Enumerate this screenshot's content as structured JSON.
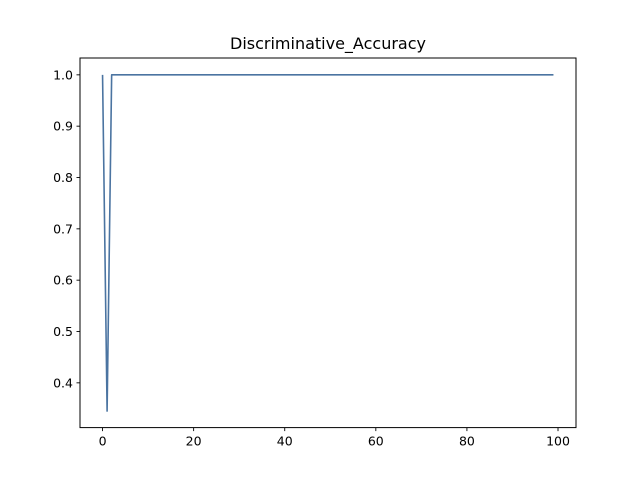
{
  "chart_data": {
    "type": "line",
    "title": "Discriminative_Accuracy",
    "xlabel": "",
    "ylabel": "",
    "xlim": [
      -4.95,
      103.95
    ],
    "ylim": [
      0.3128,
      1.0328
    ],
    "grid": false,
    "legend": "none",
    "x_ticks": [
      0,
      20,
      40,
      60,
      80,
      100
    ],
    "y_ticks": [
      0.4,
      0.5,
      0.6,
      0.7,
      0.8,
      0.9,
      1.0
    ],
    "x_tick_labels": [
      "0",
      "20",
      "40",
      "60",
      "80",
      "100"
    ],
    "y_tick_labels": [
      "0.4",
      "0.5",
      "0.6",
      "0.7",
      "0.8",
      "0.9",
      "1.0"
    ],
    "series": [
      {
        "color": "#4b74a1",
        "x": [
          0,
          1,
          2,
          3,
          4,
          5,
          6,
          7,
          8,
          9,
          10,
          11,
          12,
          13,
          14,
          15,
          16,
          17,
          18,
          19,
          20,
          21,
          22,
          23,
          24,
          25,
          26,
          27,
          28,
          29,
          30,
          31,
          32,
          33,
          34,
          35,
          36,
          37,
          38,
          39,
          40,
          41,
          42,
          43,
          44,
          45,
          46,
          47,
          48,
          49,
          50,
          51,
          52,
          53,
          54,
          55,
          56,
          57,
          58,
          59,
          60,
          61,
          62,
          63,
          64,
          65,
          66,
          67,
          68,
          69,
          70,
          71,
          72,
          73,
          74,
          75,
          76,
          77,
          78,
          79,
          80,
          81,
          82,
          83,
          84,
          85,
          86,
          87,
          88,
          89,
          90,
          91,
          92,
          93,
          94,
          95,
          96,
          97,
          98,
          99
        ],
        "y": [
          1.0,
          0.345,
          1.0,
          1.0,
          1.0,
          1.0,
          1.0,
          1.0,
          1.0,
          1.0,
          1.0,
          1.0,
          1.0,
          1.0,
          1.0,
          1.0,
          1.0,
          1.0,
          1.0,
          1.0,
          1.0,
          1.0,
          1.0,
          1.0,
          1.0,
          1.0,
          1.0,
          1.0,
          1.0,
          1.0,
          1.0,
          1.0,
          1.0,
          1.0,
          1.0,
          1.0,
          1.0,
          1.0,
          1.0,
          1.0,
          1.0,
          1.0,
          1.0,
          1.0,
          1.0,
          1.0,
          1.0,
          1.0,
          1.0,
          1.0,
          1.0,
          1.0,
          1.0,
          1.0,
          1.0,
          1.0,
          1.0,
          1.0,
          1.0,
          1.0,
          1.0,
          1.0,
          1.0,
          1.0,
          1.0,
          1.0,
          1.0,
          1.0,
          1.0,
          1.0,
          1.0,
          1.0,
          1.0,
          1.0,
          1.0,
          1.0,
          1.0,
          1.0,
          1.0,
          1.0,
          1.0,
          1.0,
          1.0,
          1.0,
          1.0,
          1.0,
          1.0,
          1.0,
          1.0,
          1.0,
          1.0,
          1.0,
          1.0,
          1.0,
          1.0,
          1.0,
          1.0,
          1.0,
          1.0,
          1.0
        ]
      }
    ]
  }
}
